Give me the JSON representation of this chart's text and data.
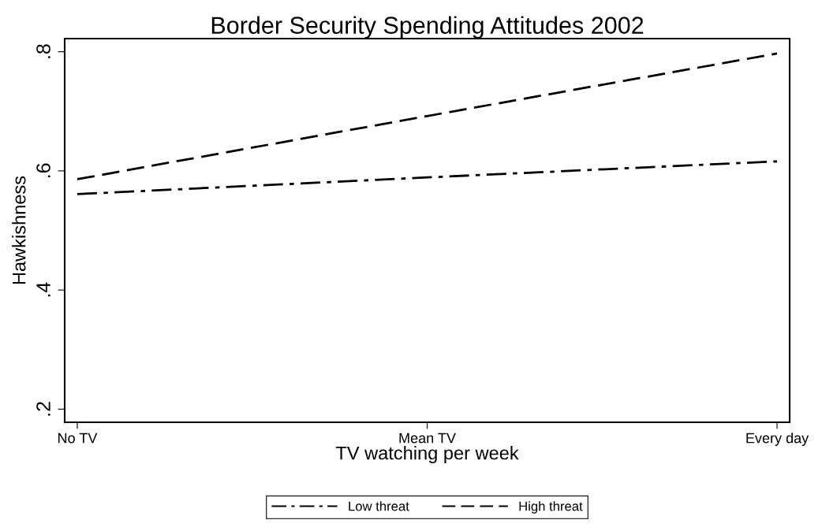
{
  "chart_data": {
    "type": "line",
    "title": "Border Security Spending Attitudes 2002",
    "xlabel": "TV watching per week",
    "ylabel": "Hawkishness",
    "categories": [
      "No TV",
      "Mean TV",
      "Every day"
    ],
    "series": [
      {
        "name": "Low threat",
        "color": "#000000",
        "line_style": "dashdot",
        "values": [
          0.561,
          0.589,
          0.616
        ]
      },
      {
        "name": "High threat",
        "color": "#000000",
        "line_style": "dashed",
        "values": [
          0.586,
          0.692,
          0.797
        ]
      }
    ],
    "ylim": [
      0.178,
      0.822
    ],
    "yticks": [
      {
        "value": 0.2,
        "label": ".2"
      },
      {
        "value": 0.4,
        "label": ".4"
      },
      {
        "value": 0.6,
        "label": ".6"
      },
      {
        "value": 0.8,
        "label": ".8"
      }
    ],
    "grid": false,
    "legend": "bottom",
    "marker": "none"
  }
}
